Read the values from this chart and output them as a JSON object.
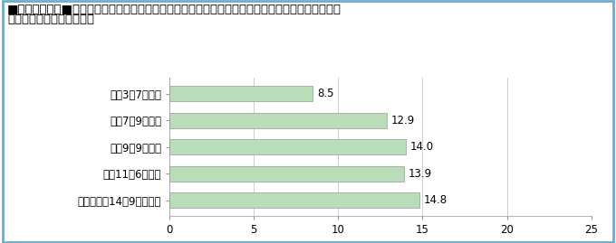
{
  "title_line1": "■図３－１－６■　大地震に備えて「家具や冷蔵庫などを固定し，転倒を防止している」と回答した",
  "title_line2": "　　　　　　　　者の割合",
  "categories": [
    "平成3年7月調査",
    "平成7年9月調査",
    "平成9年9月調査",
    "平成11年6月調査",
    "今回（平成14年9月）調査"
  ],
  "values": [
    8.5,
    12.9,
    14.0,
    13.9,
    14.8
  ],
  "bar_color": "#b8ddb8",
  "bar_edge_color": "#999999",
  "xlabel": "（%）",
  "xlim": [
    0,
    25
  ],
  "xticks": [
    0,
    5,
    10,
    15,
    20,
    25
  ],
  "grid_color": "#bbbbbb",
  "frame_color": "#6aaccc",
  "background_color": "#ffffff",
  "title_color": "#000000",
  "title_fontsize": 9.5,
  "label_fontsize": 8.5,
  "value_fontsize": 8.5,
  "tick_fontsize": 8.5
}
